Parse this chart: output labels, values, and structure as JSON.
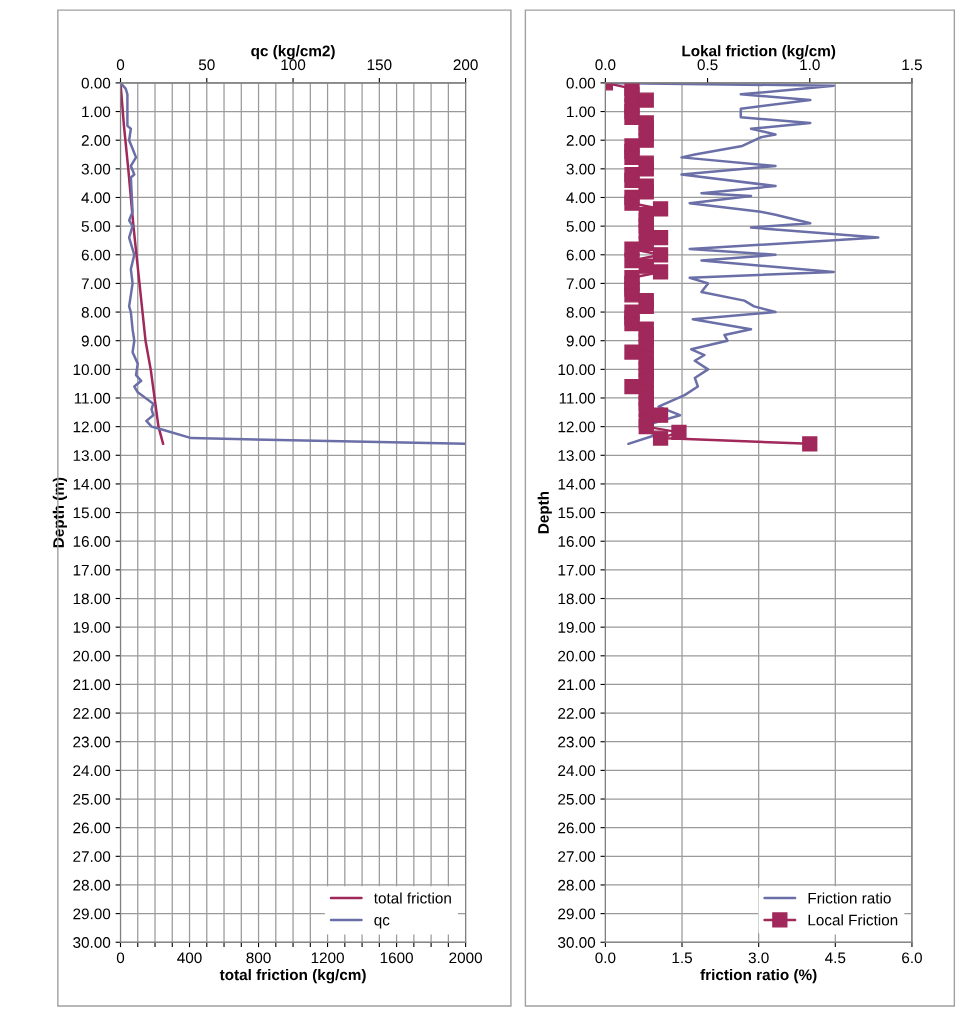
{
  "chart_data": [
    {
      "type": "line",
      "xlabel": "total friction (kg/cm)",
      "x2label": "qc (kg/cm2)",
      "ylabel": "Depth (m)",
      "xlim": [
        0,
        2000
      ],
      "xticks": [
        0,
        {
          "value": 100,
          "label": null
        },
        {
          "value": 200,
          "label": null
        },
        {
          "value": 300,
          "label": null
        },
        400,
        {
          "value": 500,
          "label": null
        },
        {
          "value": 600,
          "label": null
        },
        {
          "value": 700,
          "label": null
        },
        800,
        {
          "value": 900,
          "label": null
        },
        {
          "value": 1000,
          "label": null
        },
        {
          "value": 1100,
          "label": null
        },
        1200,
        {
          "value": 1300,
          "label": null
        },
        {
          "value": 1400,
          "label": null
        },
        {
          "value": 1500,
          "label": null
        },
        1600,
        {
          "value": 1700,
          "label": null
        },
        {
          "value": 1800,
          "label": null
        },
        {
          "value": 1900,
          "label": null
        },
        2000
      ],
      "x2lim": [
        0,
        200
      ],
      "x2ticks": [
        0,
        50,
        100,
        150,
        200
      ],
      "ylim": [
        30,
        0
      ],
      "yticks": [
        {
          "value": 0,
          "label": "0.00"
        },
        {
          "value": 1,
          "label": "1.00"
        },
        {
          "value": 2,
          "label": "2.00"
        },
        {
          "value": 3,
          "label": "3.00"
        },
        {
          "value": 4,
          "label": "4.00"
        },
        {
          "value": 5,
          "label": "5.00"
        },
        {
          "value": 6,
          "label": "6.00"
        },
        {
          "value": 7,
          "label": "7.00"
        },
        {
          "value": 8,
          "label": "8.00"
        },
        {
          "value": 9,
          "label": "9.00"
        },
        {
          "value": 10,
          "label": "10.00"
        },
        {
          "value": 11,
          "label": "11.00"
        },
        {
          "value": 12,
          "label": "12.00"
        },
        {
          "value": 13,
          "label": "13.00"
        },
        {
          "value": 14,
          "label": "14.00"
        },
        {
          "value": 15,
          "label": "15.00"
        },
        {
          "value": 16,
          "label": "16.00"
        },
        {
          "value": 17,
          "label": "17.00"
        },
        {
          "value": 18,
          "label": "18.00"
        },
        {
          "value": 19,
          "label": "19.00"
        },
        {
          "value": 20,
          "label": "20.00"
        },
        {
          "value": 21,
          "label": "21.00"
        },
        {
          "value": 22,
          "label": "22.00"
        },
        {
          "value": 23,
          "label": "23.00"
        },
        {
          "value": 24,
          "label": "24.00"
        },
        {
          "value": 25,
          "label": "25.00"
        },
        {
          "value": 26,
          "label": "26.00"
        },
        {
          "value": 27,
          "label": "27.00"
        },
        {
          "value": 28,
          "label": "28.00"
        },
        {
          "value": 29,
          "label": "29.00"
        },
        {
          "value": 30,
          "label": "30.00"
        }
      ],
      "grid": true,
      "legend": "bottom right",
      "series": [
        {
          "name": "total friction",
          "color": "#a0285a",
          "marker": "none",
          "x": [
            0,
            20,
            45,
            75,
            110,
            145,
            175,
            220,
            247
          ],
          "values": [
            0,
            1.5,
            3,
            5,
            7,
            9,
            10,
            12,
            12.6
          ]
        },
        {
          "name": "qc",
          "color": "#6b6fa8",
          "marker": "none",
          "axis": "x2",
          "x": [
            0,
            3,
            4,
            4,
            6,
            5,
            7,
            9,
            6,
            8,
            6,
            7,
            5,
            7,
            5,
            8,
            6,
            7,
            5,
            6,
            7,
            8,
            7,
            10,
            9,
            12,
            8,
            10,
            19,
            18,
            19,
            15,
            18,
            24,
            41,
            200
          ],
          "values": [
            0,
            0.2,
            0.4,
            1.5,
            1.6,
            2.0,
            2.3,
            2.6,
            2.9,
            3.2,
            3.3,
            4.5,
            4.8,
            5.0,
            5.4,
            6.0,
            6.5,
            7.0,
            7.8,
            8.0,
            8.6,
            9.0,
            9.4,
            9.8,
            10.2,
            10.4,
            10.6,
            10.8,
            11.2,
            11.4,
            11.6,
            11.8,
            12.0,
            12.1,
            12.4,
            12.6
          ]
        }
      ]
    },
    {
      "type": "line",
      "xlabel": "friction ratio (%)",
      "x2label": "Lokal friction (kg/cm)",
      "ylabel": "Depth",
      "xlim": [
        0,
        6
      ],
      "xticks": [
        {
          "value": 0,
          "label": "0.0"
        },
        1.5,
        {
          "value": 3,
          "label": "3.0"
        },
        4.5,
        {
          "value": 6,
          "label": "6.0"
        }
      ],
      "x2lim": [
        0,
        1.5
      ],
      "x2ticks": [
        {
          "value": 0,
          "label": "0.0"
        },
        0.5,
        {
          "value": 1,
          "label": "1.0"
        },
        1.5
      ],
      "ylim": [
        30,
        0
      ],
      "yticks": [
        {
          "value": 0,
          "label": "0.00"
        },
        {
          "value": 1,
          "label": "1.00"
        },
        {
          "value": 2,
          "label": "2.00"
        },
        {
          "value": 3,
          "label": "3.00"
        },
        {
          "value": 4,
          "label": "4.00"
        },
        {
          "value": 5,
          "label": "5.00"
        },
        {
          "value": 6,
          "label": "6.00"
        },
        {
          "value": 7,
          "label": "7.00"
        },
        {
          "value": 8,
          "label": "8.00"
        },
        {
          "value": 9,
          "label": "9.00"
        },
        {
          "value": 10,
          "label": "10.00"
        },
        {
          "value": 11,
          "label": "11.00"
        },
        {
          "value": 12,
          "label": "12.00"
        },
        {
          "value": 13,
          "label": "13.00"
        },
        {
          "value": 14,
          "label": "14.00"
        },
        {
          "value": 15,
          "label": "15.00"
        },
        {
          "value": 16,
          "label": "16.00"
        },
        {
          "value": 17,
          "label": "17.00"
        },
        {
          "value": 18,
          "label": "18.00"
        },
        {
          "value": 19,
          "label": "19.00"
        },
        {
          "value": 20,
          "label": "20.00"
        },
        {
          "value": 21,
          "label": "21.00"
        },
        {
          "value": 22,
          "label": "22.00"
        },
        {
          "value": 23,
          "label": "23.00"
        },
        {
          "value": 24,
          "label": "24.00"
        },
        {
          "value": 25,
          "label": "25.00"
        },
        {
          "value": 26,
          "label": "26.00"
        },
        {
          "value": 27,
          "label": "27.00"
        },
        {
          "value": 28,
          "label": "28.00"
        },
        {
          "value": 29,
          "label": "29.00"
        },
        {
          "value": 30,
          "label": "30.00"
        }
      ],
      "grid": true,
      "legend": "bottom right",
      "series": [
        {
          "name": "Friction ratio",
          "color": "#6b6fa8",
          "marker": "none",
          "x": [
            0,
            4.47,
            2.65,
            4.01,
            2.65,
            2.65,
            4.01,
            2.85,
            3.33,
            3.04,
            2.68,
            1.75,
            1.49,
            3.33,
            1.49,
            3.33,
            1.88,
            2.85,
            1.65,
            3.04,
            3.33,
            4.01,
            2.85,
            5.34,
            1.65,
            3.33,
            1.88,
            4.47,
            1.65,
            2.01,
            1.88,
            2.72,
            2.91,
            3.33,
            1.71,
            2.85,
            2.33,
            2.39,
            1.68,
            1.94,
            1.75,
            2.01,
            1.75,
            1.81,
            1.55,
            1.04,
            1.46,
            0.71,
            0.97,
            0.45
          ],
          "values": [
            0,
            0.1,
            0.4,
            0.6,
            0.9,
            1.2,
            1.4,
            1.6,
            1.8,
            1.9,
            2.2,
            2.5,
            2.6,
            2.9,
            3.2,
            3.6,
            3.85,
            3.95,
            4.2,
            4.5,
            4.6,
            4.9,
            5.05,
            5.4,
            5.8,
            6.0,
            6.2,
            6.6,
            6.8,
            7.0,
            7.3,
            7.6,
            7.8,
            8.0,
            8.25,
            8.6,
            8.8,
            9.0,
            9.3,
            9.5,
            9.7,
            10.0,
            10.3,
            10.6,
            10.9,
            11.3,
            11.6,
            12.0,
            12.3,
            12.6
          ]
        },
        {
          "name": "Local Friction",
          "color": "#a0285a",
          "marker": "square",
          "axis": "x2",
          "x": [
            0,
            0.13,
            0.13,
            0.2,
            0.13,
            0.13,
            0.13,
            0.2,
            0.2,
            0.2,
            0.2,
            0.13,
            0.13,
            0.13,
            0.2,
            0.2,
            0.13,
            0.13,
            0.2,
            0.2,
            0.13,
            0.13,
            0.27,
            0.2,
            0.2,
            0.2,
            0.2,
            0.27,
            0.2,
            0.13,
            0.27,
            0.13,
            0.2,
            0.27,
            0.13,
            0.13,
            0.13,
            0.13,
            0.2,
            0.2,
            0.13,
            0.13,
            0.13,
            0.2,
            0.2,
            0.2,
            0.2,
            0.13,
            0.2,
            0.2,
            0.2,
            0.2,
            0.2,
            0.13,
            0.2,
            0.2,
            0.2,
            0.2,
            0.27,
            0.2,
            0.2,
            0.36,
            0.27,
            1.0
          ],
          "values": [
            0,
            0.2,
            0.4,
            0.6,
            0.8,
            1.0,
            1.2,
            1.4,
            1.6,
            1.8,
            2.0,
            2.2,
            2.4,
            2.6,
            2.8,
            3.0,
            3.2,
            3.4,
            3.6,
            3.8,
            4.0,
            4.2,
            4.4,
            4.6,
            4.8,
            5.0,
            5.2,
            5.4,
            5.6,
            5.8,
            6.0,
            6.2,
            6.4,
            6.6,
            6.8,
            7.0,
            7.2,
            7.4,
            7.6,
            7.8,
            8.0,
            8.2,
            8.4,
            8.6,
            8.8,
            9.0,
            9.2,
            9.4,
            9.6,
            9.8,
            10.0,
            10.2,
            10.4,
            10.6,
            10.8,
            11.0,
            11.2,
            11.4,
            11.6,
            11.8,
            12.0,
            12.2,
            12.4,
            12.6
          ]
        }
      ]
    }
  ]
}
